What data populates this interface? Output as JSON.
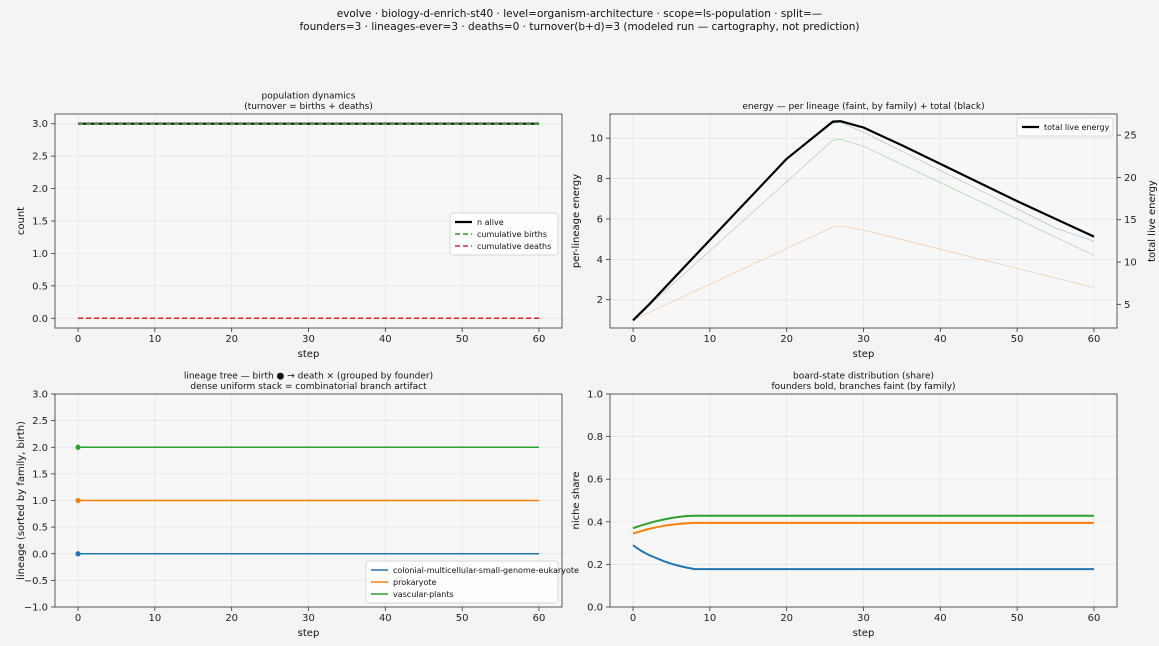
{
  "suptitle": {
    "line1": "evolve · biology-d-enrich-st40 · level=organism-architecture · scope=ls-population · split=—",
    "line2": "founders=3 · lineages-ever=3 · deaths=0 · turnover(b+d)=3   (modeled run — cartography, not prediction)"
  },
  "colors": {
    "blue": "#1f77b4",
    "orange": "#ff7f0e",
    "green": "#2ca02c",
    "red": "#d62728",
    "black": "#000000"
  },
  "chart_data": [
    {
      "type": "line",
      "title": "population dynamics\n(turnover = births + deaths)",
      "xlabel": "step",
      "ylabel": "count",
      "xlim": [
        -3,
        63
      ],
      "ylim": [
        -0.15,
        3.15
      ],
      "xticks": [
        0,
        10,
        20,
        30,
        40,
        50,
        60
      ],
      "yticks": [
        0.0,
        0.5,
        1.0,
        1.5,
        2.0,
        2.5,
        3.0
      ],
      "ytick_decimals": 1,
      "grid": true,
      "legend_position": "center-right",
      "series": [
        {
          "name": "n alive",
          "color": "#000000",
          "width": 2.2,
          "dash": "",
          "x": [
            0,
            60
          ],
          "y": [
            3,
            3
          ]
        },
        {
          "name": "cumulative births",
          "color": "#2ca02c",
          "width": 1.5,
          "dash": "5,3",
          "x": [
            0,
            60
          ],
          "y": [
            3,
            3
          ]
        },
        {
          "name": "cumulative deaths",
          "color": "#d62728",
          "width": 1.5,
          "dash": "5,3",
          "x": [
            0,
            60
          ],
          "y": [
            0,
            0
          ]
        }
      ]
    },
    {
      "type": "line",
      "title": "energy — per lineage (faint, by family) + total (black)",
      "xlabel": "step",
      "ylabel": "per-lineage energy",
      "y2label": "total live energy",
      "xlim": [
        -3,
        63
      ],
      "ylim": [
        0.6,
        11.2
      ],
      "y2lim": [
        2.2,
        27.5
      ],
      "xticks": [
        0,
        10,
        20,
        30,
        40,
        50,
        60
      ],
      "yticks": [
        2,
        4,
        6,
        8,
        10
      ],
      "y2ticks": [
        5,
        10,
        15,
        20,
        25
      ],
      "ytick_decimals": 0,
      "grid": true,
      "legend_position": "top-right",
      "series": [
        {
          "name": "",
          "color": "#1f77b4",
          "width": 0.8,
          "opacity": 0.35,
          "axis": "left",
          "x": [
            0,
            2,
            5,
            10,
            15,
            20,
            26,
            27,
            30,
            35,
            40,
            45,
            50,
            55,
            60
          ],
          "y": [
            1.0,
            1.75,
            2.95,
            4.95,
            6.95,
            8.95,
            10.75,
            10.78,
            10.3,
            9.35,
            8.4,
            7.45,
            6.5,
            5.55,
            4.9
          ]
        },
        {
          "name": "",
          "color": "#2ca02c",
          "width": 0.8,
          "opacity": 0.35,
          "axis": "left",
          "x": [
            0,
            26,
            27,
            30,
            60
          ],
          "y": [
            1.0,
            9.9,
            9.95,
            9.6,
            4.2
          ]
        },
        {
          "name": "",
          "color": "#ff7f0e",
          "width": 0.8,
          "opacity": 0.35,
          "axis": "left",
          "x": [
            0,
            26,
            27,
            30,
            60
          ],
          "y": [
            1.0,
            5.6,
            5.65,
            5.45,
            2.6
          ]
        },
        {
          "name": "total live energy",
          "color": "#000000",
          "width": 2.2,
          "axis": "right",
          "x": [
            0,
            2,
            5,
            10,
            15,
            20,
            26,
            27,
            30,
            35,
            40,
            45,
            50,
            55,
            60
          ],
          "y": [
            3.1,
            4.9,
            7.8,
            12.6,
            17.4,
            22.2,
            26.6,
            26.65,
            25.9,
            23.8,
            21.6,
            19.4,
            17.2,
            15.1,
            13.0
          ]
        }
      ]
    },
    {
      "type": "line",
      "title": "lineage tree — birth ● → death ×  (grouped by founder)\ndense uniform stack = combinatorial branch artifact",
      "xlabel": "step",
      "ylabel": "lineage (sorted by family, birth)",
      "xlim": [
        -3,
        63
      ],
      "ylim": [
        -1.0,
        3.0
      ],
      "xticks": [
        0,
        10,
        20,
        30,
        40,
        50,
        60
      ],
      "yticks": [
        -1.0,
        -0.5,
        0.0,
        0.5,
        1.0,
        1.5,
        2.0,
        2.5,
        3.0
      ],
      "ytick_decimals": 1,
      "grid": true,
      "legend_position": "bottom-right",
      "series": [
        {
          "name": "colonial-multicellular-small-genome-eukaryote",
          "color": "#1f77b4",
          "width": 1.5,
          "marker_start": true,
          "x": [
            0,
            60
          ],
          "y": [
            0,
            0
          ]
        },
        {
          "name": "prokaryote",
          "color": "#ff7f0e",
          "width": 1.5,
          "marker_start": true,
          "x": [
            0,
            60
          ],
          "y": [
            1,
            1
          ]
        },
        {
          "name": "vascular-plants",
          "color": "#2ca02c",
          "width": 1.5,
          "marker_start": true,
          "x": [
            0,
            60
          ],
          "y": [
            2,
            2
          ]
        }
      ]
    },
    {
      "type": "line",
      "title": "board-state distribution (share)\nfounders bold, branches faint (by family)",
      "xlabel": "step",
      "ylabel": "niche share",
      "xlim": [
        -3,
        63
      ],
      "ylim": [
        0.0,
        1.0
      ],
      "xticks": [
        0,
        10,
        20,
        30,
        40,
        50,
        60
      ],
      "yticks": [
        0.0,
        0.2,
        0.4,
        0.6,
        0.8,
        1.0
      ],
      "ytick_decimals": 1,
      "grid": true,
      "legend_position": "none",
      "series": [
        {
          "name": "",
          "color": "#1f77b4",
          "width": 2.0,
          "x": [
            0,
            1,
            2,
            3,
            4,
            5,
            6,
            7,
            8,
            60
          ],
          "y": [
            0.29,
            0.265,
            0.245,
            0.23,
            0.215,
            0.203,
            0.193,
            0.185,
            0.178,
            0.178
          ]
        },
        {
          "name": "",
          "color": "#ff7f0e",
          "width": 2.0,
          "x": [
            0,
            1,
            2,
            3,
            4,
            5,
            6,
            7,
            8,
            60
          ],
          "y": [
            0.345,
            0.356,
            0.366,
            0.374,
            0.381,
            0.386,
            0.39,
            0.393,
            0.395,
            0.395
          ]
        },
        {
          "name": "",
          "color": "#2ca02c",
          "width": 2.0,
          "x": [
            0,
            1,
            2,
            3,
            4,
            5,
            6,
            7,
            8,
            60
          ],
          "y": [
            0.37,
            0.382,
            0.393,
            0.403,
            0.411,
            0.418,
            0.423,
            0.427,
            0.428,
            0.428
          ]
        }
      ]
    }
  ]
}
